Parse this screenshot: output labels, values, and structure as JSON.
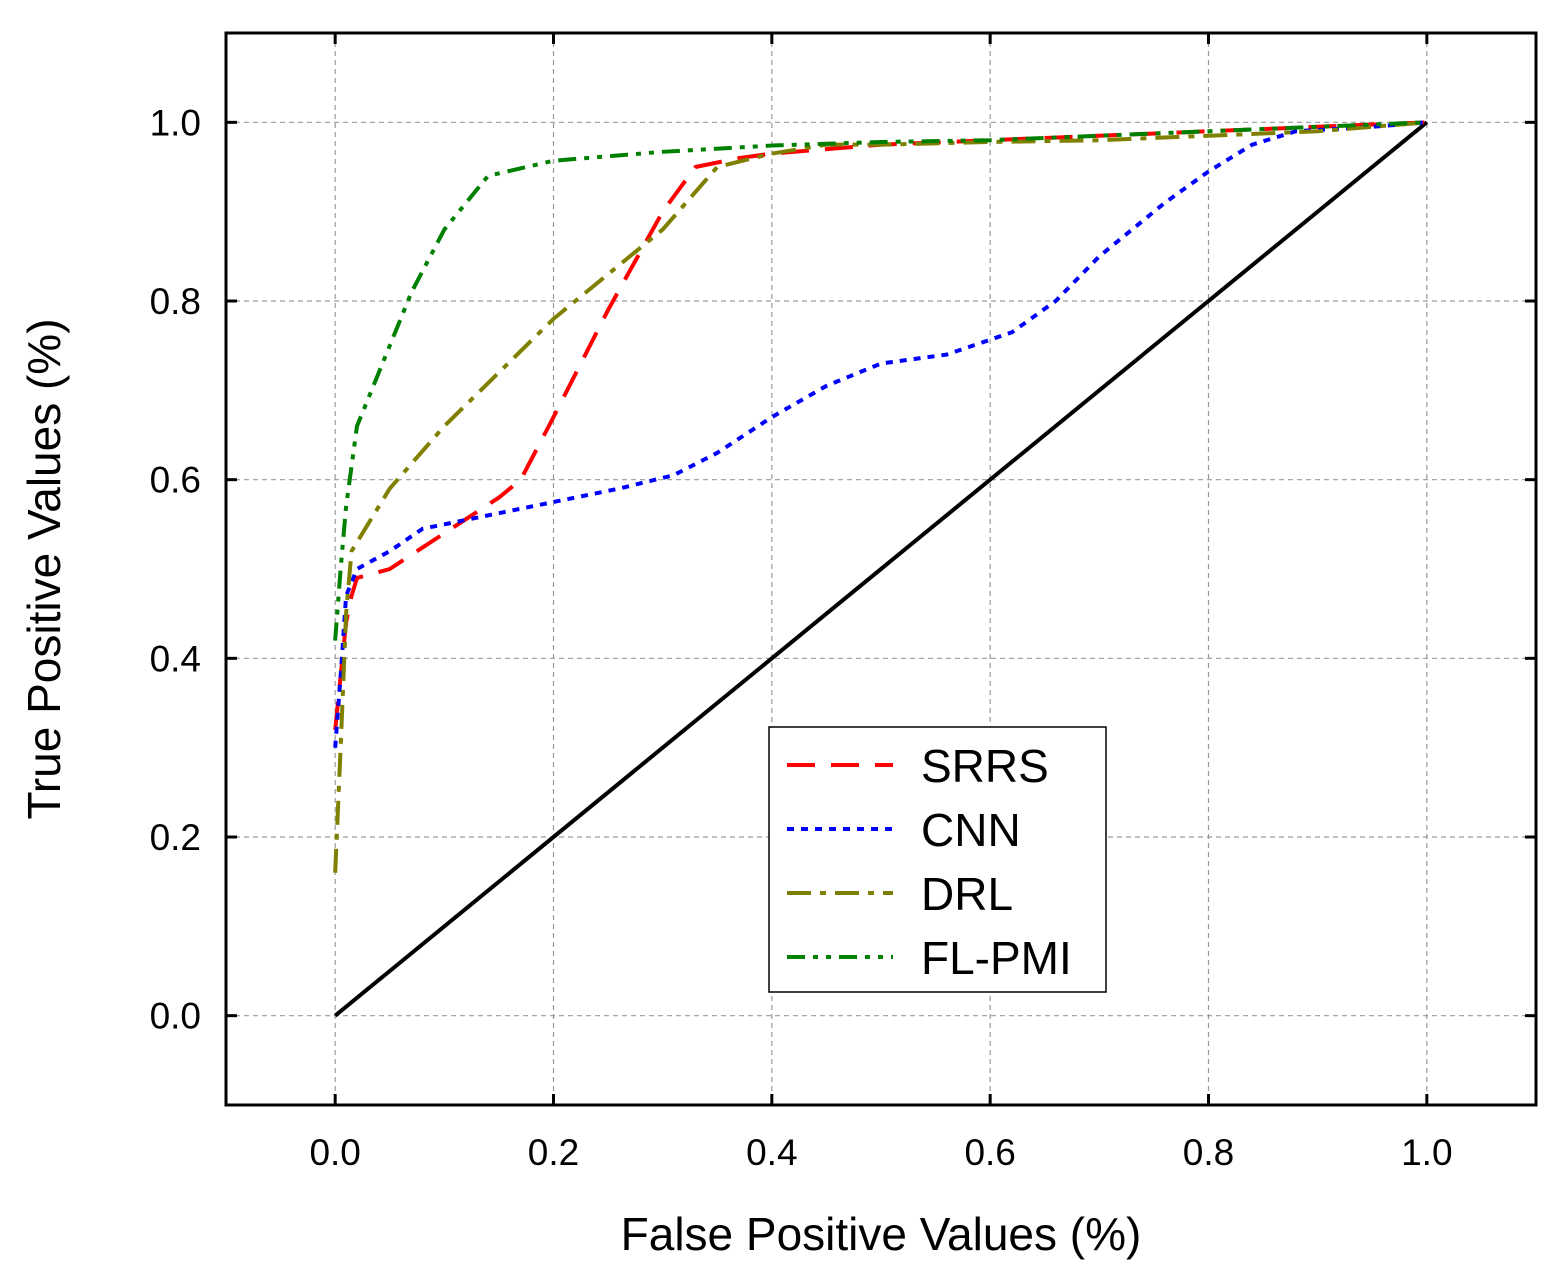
{
  "chart_data": {
    "type": "line",
    "title": "",
    "xlabel": "False Positive Values (%)",
    "ylabel": "True Positive Values (%)",
    "xlim": [
      -0.1,
      1.1
    ],
    "ylim": [
      -0.1,
      1.1
    ],
    "xticks": [
      0.0,
      0.2,
      0.4,
      0.6,
      0.8,
      1.0
    ],
    "yticks": [
      0.0,
      0.2,
      0.4,
      0.6,
      0.8,
      1.0
    ],
    "xtick_labels": [
      "0.0",
      "0.2",
      "0.4",
      "0.6",
      "0.8",
      "1.0"
    ],
    "ytick_labels": [
      "0.0",
      "0.2",
      "0.4",
      "0.6",
      "0.8",
      "1.0"
    ],
    "grid": true,
    "legend_position": "lower-center-right",
    "reference_line": {
      "name": "diagonal",
      "color": "#000000",
      "x": [
        0.0,
        1.0
      ],
      "y": [
        0.0,
        1.0
      ]
    },
    "series": [
      {
        "name": "SRRS",
        "color": "#ff0000",
        "dash": "dashed",
        "x": [
          0.0,
          0.005,
          0.01,
          0.015,
          0.02,
          0.05,
          0.1,
          0.15,
          0.17,
          0.2,
          0.25,
          0.3,
          0.33,
          0.37,
          0.4,
          0.45,
          0.5,
          0.6,
          0.7,
          0.8,
          0.9,
          1.0
        ],
        "y": [
          0.32,
          0.38,
          0.44,
          0.47,
          0.49,
          0.5,
          0.54,
          0.58,
          0.6,
          0.67,
          0.79,
          0.9,
          0.95,
          0.96,
          0.965,
          0.97,
          0.975,
          0.98,
          0.985,
          0.99,
          0.995,
          1.0
        ]
      },
      {
        "name": "CNN",
        "color": "#0000ff",
        "dash": "dotted",
        "x": [
          0.0,
          0.005,
          0.01,
          0.02,
          0.05,
          0.08,
          0.12,
          0.2,
          0.26,
          0.31,
          0.35,
          0.4,
          0.45,
          0.5,
          0.56,
          0.62,
          0.66,
          0.7,
          0.76,
          0.8,
          0.84,
          0.88,
          0.95,
          1.0
        ],
        "y": [
          0.3,
          0.38,
          0.47,
          0.5,
          0.52,
          0.545,
          0.555,
          0.575,
          0.59,
          0.605,
          0.63,
          0.67,
          0.705,
          0.73,
          0.74,
          0.765,
          0.8,
          0.85,
          0.91,
          0.945,
          0.975,
          0.99,
          0.995,
          1.0
        ]
      },
      {
        "name": "DRL",
        "color": "#808000",
        "dash": "dash-dot",
        "x": [
          0.0,
          0.005,
          0.01,
          0.015,
          0.03,
          0.05,
          0.1,
          0.15,
          0.2,
          0.25,
          0.3,
          0.35,
          0.4,
          0.45,
          0.5,
          0.6,
          0.7,
          0.8,
          0.9,
          1.0
        ],
        "y": [
          0.16,
          0.3,
          0.45,
          0.52,
          0.55,
          0.59,
          0.66,
          0.72,
          0.78,
          0.83,
          0.88,
          0.95,
          0.965,
          0.975,
          0.975,
          0.978,
          0.98,
          0.985,
          0.99,
          1.0
        ]
      },
      {
        "name": "FL-PMI",
        "color": "#008000",
        "dash": "dash-dot-dot",
        "x": [
          0.0,
          0.005,
          0.01,
          0.02,
          0.04,
          0.07,
          0.1,
          0.14,
          0.2,
          0.3,
          0.4,
          0.5,
          0.6,
          0.7,
          0.8,
          0.9,
          1.0
        ],
        "y": [
          0.42,
          0.5,
          0.57,
          0.66,
          0.72,
          0.81,
          0.88,
          0.94,
          0.957,
          0.967,
          0.974,
          0.978,
          0.98,
          0.985,
          0.99,
          0.995,
          1.0
        ]
      }
    ]
  }
}
